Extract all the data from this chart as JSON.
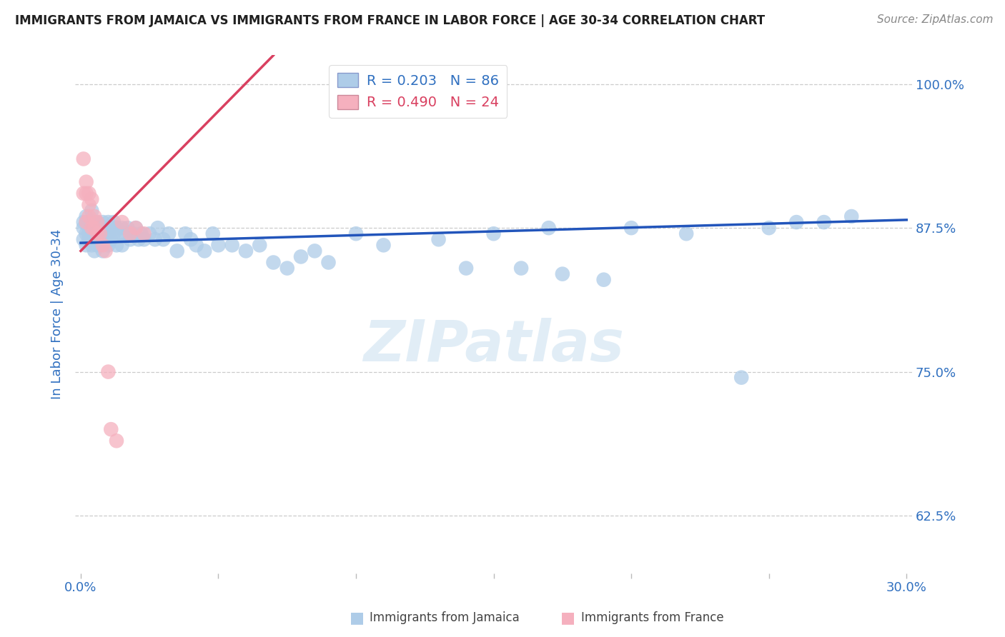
{
  "title": "IMMIGRANTS FROM JAMAICA VS IMMIGRANTS FROM FRANCE IN LABOR FORCE | AGE 30-34 CORRELATION CHART",
  "source": "Source: ZipAtlas.com",
  "ylabel": "In Labor Force | Age 30-34",
  "xlim": [
    -0.002,
    0.302
  ],
  "ylim": [
    0.575,
    1.025
  ],
  "yticks": [
    0.625,
    0.75,
    0.875,
    1.0
  ],
  "ytick_labels": [
    "62.5%",
    "75.0%",
    "87.5%",
    "100.0%"
  ],
  "xticks": [
    0.0,
    0.05,
    0.1,
    0.15,
    0.2,
    0.25,
    0.3
  ],
  "xtick_labels": [
    "0.0%",
    "",
    "",
    "",
    "",
    "",
    "30.0%"
  ],
  "legend_r1": "R = 0.203",
  "legend_n1": "N = 86",
  "legend_r2": "R = 0.490",
  "legend_n2": "N = 24",
  "blue_color": "#aecce8",
  "pink_color": "#f5b0be",
  "blue_line_color": "#2255bb",
  "pink_line_color": "#d94060",
  "title_color": "#202020",
  "axis_label_color": "#3070c0",
  "tick_label_color": "#3070c0",
  "watermark": "ZIPatlas",
  "grid_color": "#cccccc",
  "jamaica_x": [
    0.001,
    0.001,
    0.001,
    0.002,
    0.002,
    0.002,
    0.002,
    0.003,
    0.003,
    0.003,
    0.003,
    0.004,
    0.004,
    0.004,
    0.004,
    0.005,
    0.005,
    0.005,
    0.005,
    0.006,
    0.006,
    0.006,
    0.007,
    0.007,
    0.007,
    0.008,
    0.008,
    0.008,
    0.009,
    0.009,
    0.01,
    0.01,
    0.01,
    0.011,
    0.011,
    0.012,
    0.012,
    0.013,
    0.013,
    0.014,
    0.015,
    0.015,
    0.016,
    0.017,
    0.018,
    0.019,
    0.02,
    0.021,
    0.022,
    0.023,
    0.025,
    0.027,
    0.028,
    0.03,
    0.032,
    0.035,
    0.038,
    0.04,
    0.042,
    0.045,
    0.048,
    0.05,
    0.055,
    0.06,
    0.065,
    0.07,
    0.075,
    0.08,
    0.085,
    0.09,
    0.1,
    0.11,
    0.13,
    0.15,
    0.17,
    0.2,
    0.22,
    0.25,
    0.26,
    0.28,
    0.14,
    0.16,
    0.175,
    0.19,
    0.24,
    0.27
  ],
  "jamaica_y": [
    0.88,
    0.875,
    0.865,
    0.885,
    0.87,
    0.88,
    0.86,
    0.875,
    0.87,
    0.88,
    0.865,
    0.89,
    0.875,
    0.86,
    0.87,
    0.88,
    0.875,
    0.865,
    0.855,
    0.88,
    0.87,
    0.86,
    0.875,
    0.87,
    0.86,
    0.88,
    0.865,
    0.855,
    0.875,
    0.865,
    0.88,
    0.87,
    0.86,
    0.875,
    0.865,
    0.88,
    0.87,
    0.875,
    0.86,
    0.87,
    0.875,
    0.86,
    0.87,
    0.875,
    0.865,
    0.87,
    0.875,
    0.865,
    0.87,
    0.865,
    0.87,
    0.865,
    0.875,
    0.865,
    0.87,
    0.855,
    0.87,
    0.865,
    0.86,
    0.855,
    0.87,
    0.86,
    0.86,
    0.855,
    0.86,
    0.845,
    0.84,
    0.85,
    0.855,
    0.845,
    0.87,
    0.86,
    0.865,
    0.87,
    0.875,
    0.875,
    0.87,
    0.875,
    0.88,
    0.885,
    0.84,
    0.84,
    0.835,
    0.83,
    0.745,
    0.88
  ],
  "france_x": [
    0.001,
    0.001,
    0.002,
    0.002,
    0.002,
    0.003,
    0.003,
    0.003,
    0.004,
    0.004,
    0.005,
    0.005,
    0.006,
    0.006,
    0.007,
    0.008,
    0.009,
    0.01,
    0.011,
    0.013,
    0.015,
    0.018,
    0.02,
    0.023
  ],
  "france_y": [
    0.935,
    0.905,
    0.915,
    0.905,
    0.88,
    0.905,
    0.895,
    0.885,
    0.9,
    0.875,
    0.885,
    0.875,
    0.88,
    0.87,
    0.87,
    0.86,
    0.855,
    0.75,
    0.7,
    0.69,
    0.88,
    0.87,
    0.875,
    0.87
  ],
  "blue_line_x": [
    0.0,
    0.3
  ],
  "blue_line_y": [
    0.862,
    0.882
  ],
  "pink_line_x": [
    0.0,
    0.07
  ],
  "pink_line_y": [
    0.855,
    1.025
  ]
}
